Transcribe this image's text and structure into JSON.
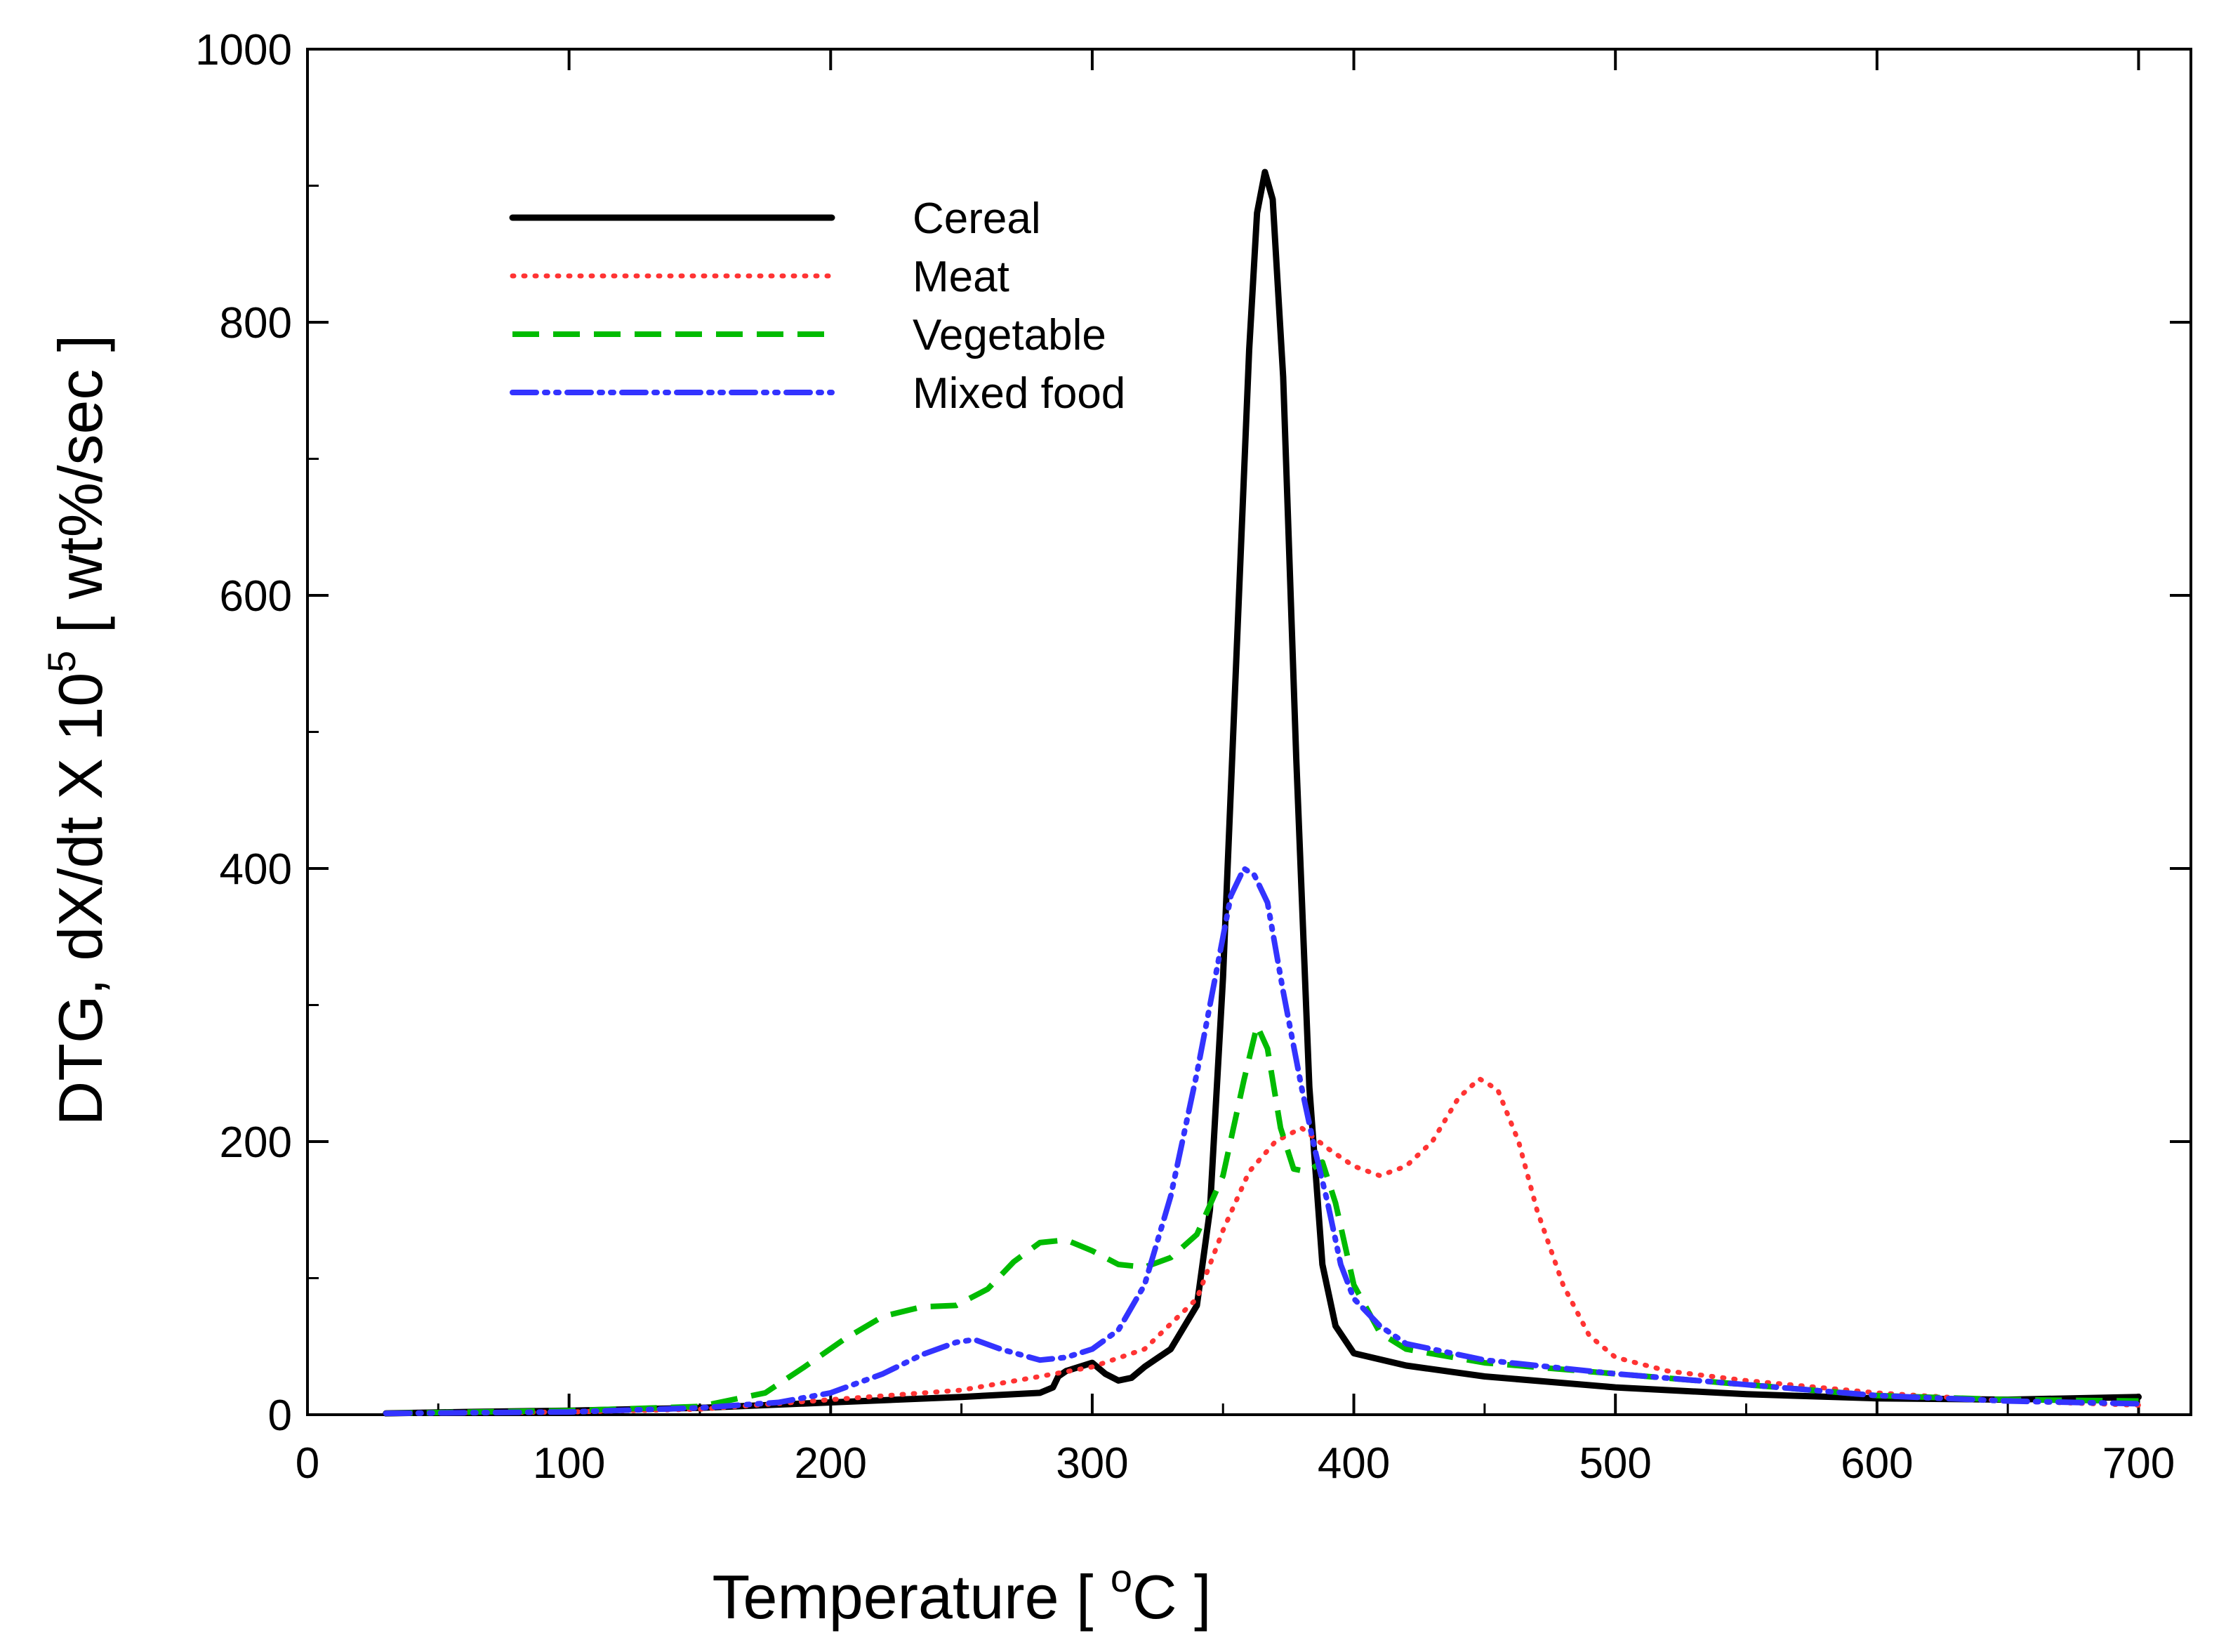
{
  "chart_data": {
    "type": "line",
    "title": "",
    "xlabel": "Temperature [ °C ]",
    "xlabel_main": "Temperature [ ",
    "xlabel_sup": "o",
    "xlabel_end": "C ]",
    "ylabel": "DTG, dX/dt X 10^5 [ wt%/sec ]",
    "ylabel_main": "DTG, dX/dt X 10",
    "ylabel_sup": "5",
    "ylabel_end": " [ wt%/sec ]",
    "xlim": [
      0,
      720
    ],
    "ylim": [
      0,
      1000
    ],
    "xticks": [
      0,
      100,
      200,
      300,
      400,
      500,
      600,
      700
    ],
    "yticks": [
      0,
      200,
      400,
      600,
      800,
      1000
    ],
    "legend_position": "top-left",
    "series": [
      {
        "name": "Cereal",
        "color": "#000000",
        "style": "solid",
        "points": [
          [
            30,
            1
          ],
          [
            60,
            2
          ],
          [
            100,
            3
          ],
          [
            150,
            5
          ],
          [
            200,
            9
          ],
          [
            250,
            13
          ],
          [
            280,
            16
          ],
          [
            285,
            20
          ],
          [
            287,
            28
          ],
          [
            290,
            32
          ],
          [
            295,
            35
          ],
          [
            300,
            38
          ],
          [
            305,
            30
          ],
          [
            310,
            25
          ],
          [
            315,
            27
          ],
          [
            320,
            35
          ],
          [
            330,
            48
          ],
          [
            340,
            80
          ],
          [
            345,
            150
          ],
          [
            350,
            320
          ],
          [
            355,
            550
          ],
          [
            360,
            780
          ],
          [
            363,
            880
          ],
          [
            366,
            910
          ],
          [
            369,
            890
          ],
          [
            373,
            760
          ],
          [
            378,
            480
          ],
          [
            383,
            240
          ],
          [
            388,
            110
          ],
          [
            393,
            65
          ],
          [
            400,
            45
          ],
          [
            420,
            36
          ],
          [
            450,
            28
          ],
          [
            500,
            20
          ],
          [
            550,
            15
          ],
          [
            600,
            12
          ],
          [
            650,
            11
          ],
          [
            700,
            13
          ]
        ]
      },
      {
        "name": "Meat",
        "color": "#ff3333",
        "style": "dotted",
        "points": [
          [
            30,
            1
          ],
          [
            100,
            2
          ],
          [
            150,
            4
          ],
          [
            200,
            11
          ],
          [
            250,
            18
          ],
          [
            280,
            28
          ],
          [
            300,
            35
          ],
          [
            320,
            48
          ],
          [
            340,
            85
          ],
          [
            350,
            135
          ],
          [
            360,
            178
          ],
          [
            370,
            200
          ],
          [
            380,
            210
          ],
          [
            390,
            195
          ],
          [
            400,
            182
          ],
          [
            410,
            175
          ],
          [
            420,
            182
          ],
          [
            430,
            200
          ],
          [
            440,
            232
          ],
          [
            448,
            246
          ],
          [
            455,
            238
          ],
          [
            463,
            200
          ],
          [
            470,
            150
          ],
          [
            480,
            95
          ],
          [
            490,
            58
          ],
          [
            500,
            42
          ],
          [
            520,
            32
          ],
          [
            550,
            25
          ],
          [
            600,
            16
          ],
          [
            650,
            10
          ],
          [
            700,
            7
          ]
        ]
      },
      {
        "name": "Vegetable",
        "color": "#00bb00",
        "style": "dashed",
        "points": [
          [
            30,
            1
          ],
          [
            100,
            3
          ],
          [
            150,
            6
          ],
          [
            175,
            16
          ],
          [
            190,
            35
          ],
          [
            205,
            55
          ],
          [
            220,
            72
          ],
          [
            235,
            79
          ],
          [
            248,
            80
          ],
          [
            260,
            92
          ],
          [
            270,
            112
          ],
          [
            280,
            126
          ],
          [
            290,
            128
          ],
          [
            300,
            120
          ],
          [
            310,
            110
          ],
          [
            320,
            108
          ],
          [
            330,
            115
          ],
          [
            340,
            132
          ],
          [
            350,
            175
          ],
          [
            358,
            245
          ],
          [
            363,
            285
          ],
          [
            367,
            268
          ],
          [
            372,
            210
          ],
          [
            377,
            180
          ],
          [
            382,
            178
          ],
          [
            388,
            185
          ],
          [
            393,
            155
          ],
          [
            400,
            95
          ],
          [
            410,
            60
          ],
          [
            420,
            48
          ],
          [
            450,
            38
          ],
          [
            500,
            30
          ],
          [
            550,
            22
          ],
          [
            600,
            14
          ],
          [
            650,
            11
          ],
          [
            700,
            10
          ]
        ]
      },
      {
        "name": "Mixed food",
        "color": "#3333ff",
        "style": "dashdotdot",
        "points": [
          [
            30,
            1
          ],
          [
            100,
            2
          ],
          [
            150,
            5
          ],
          [
            180,
            9
          ],
          [
            200,
            16
          ],
          [
            220,
            30
          ],
          [
            235,
            44
          ],
          [
            248,
            53
          ],
          [
            255,
            55
          ],
          [
            265,
            48
          ],
          [
            280,
            40
          ],
          [
            290,
            42
          ],
          [
            300,
            48
          ],
          [
            310,
            62
          ],
          [
            320,
            95
          ],
          [
            330,
            160
          ],
          [
            340,
            250
          ],
          [
            348,
            330
          ],
          [
            353,
            380
          ],
          [
            358,
            400
          ],
          [
            362,
            395
          ],
          [
            367,
            375
          ],
          [
            373,
            310
          ],
          [
            380,
            240
          ],
          [
            385,
            195
          ],
          [
            390,
            155
          ],
          [
            395,
            110
          ],
          [
            400,
            85
          ],
          [
            410,
            65
          ],
          [
            420,
            52
          ],
          [
            450,
            40
          ],
          [
            500,
            30
          ],
          [
            550,
            22
          ],
          [
            600,
            14
          ],
          [
            650,
            10
          ],
          [
            700,
            8
          ]
        ]
      }
    ]
  }
}
